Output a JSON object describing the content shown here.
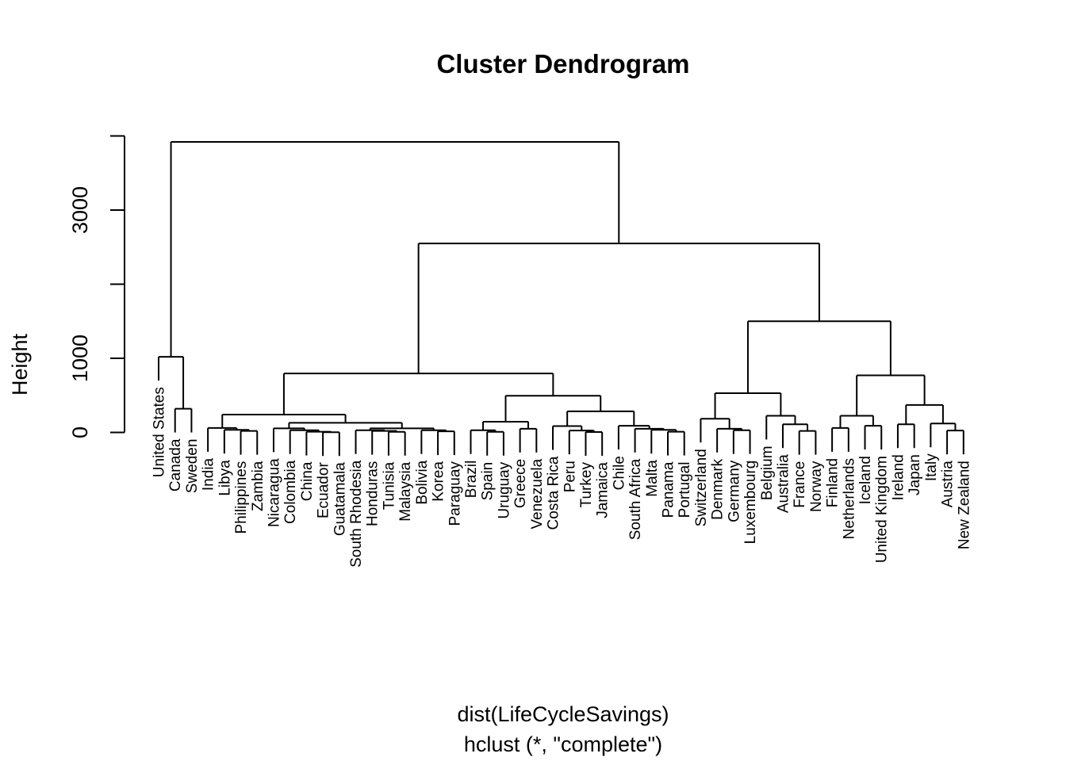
{
  "chart_data": {
    "type": "dendrogram",
    "title": "Cluster Dendrogram",
    "ylabel": "Height",
    "xlabel": "dist(LifeCycleSavings)",
    "sublabel": "hclust (*, \"complete\")",
    "y_ticks": [
      0,
      1000,
      3000
    ],
    "y_tick_marks": [
      0,
      1000,
      2000,
      3000,
      4000
    ],
    "ylim": [
      0,
      4000
    ],
    "leaves": [
      "United States",
      "Canada",
      "Sweden",
      "India",
      "Libya",
      "Philippines",
      "Zambia",
      "Nicaragua",
      "Colombia",
      "China",
      "Ecuador",
      "Guatamala",
      "South Rhodesia",
      "Honduras",
      "Tunisia",
      "Malaysia",
      "Bolivia",
      "Korea",
      "Paraguay",
      "Brazil",
      "Spain",
      "Uruguay",
      "Greece",
      "Venezuela",
      "Costa Rica",
      "Peru",
      "Turkey",
      "Jamaica",
      "Chile",
      "South Africa",
      "Malta",
      "Panama",
      "Portugal",
      "Switzerland",
      "Denmark",
      "Germany",
      "Luxembourg",
      "Belgium",
      "Australia",
      "France",
      "Norway",
      "Finland",
      "Netherlands",
      "Iceland",
      "United Kingdom",
      "Ireland",
      "Japan",
      "Italy",
      "Austria",
      "New Zealand"
    ],
    "merges": [
      {
        "a": [
          "Canada"
        ],
        "b": [
          "Sweden"
        ],
        "height": 320
      },
      {
        "a": [
          "United States"
        ],
        "b": [
          "Canada",
          "Sweden"
        ],
        "height": 1020
      },
      {
        "a": [
          "Philippines"
        ],
        "b": [
          "Zambia"
        ],
        "height": 20
      },
      {
        "a": [
          "Libya"
        ],
        "b": [
          "Philippines",
          "Zambia"
        ],
        "height": 35
      },
      {
        "a": [
          "India"
        ],
        "b": [
          "Libya",
          "Philippines",
          "Zambia"
        ],
        "height": 60
      },
      {
        "a": [
          "Ecuador"
        ],
        "b": [
          "Guatamala"
        ],
        "height": 3
      },
      {
        "a": [
          "China"
        ],
        "b": [
          "Ecuador",
          "Guatamala"
        ],
        "height": 10
      },
      {
        "a": [
          "Colombia"
        ],
        "b": [
          "China",
          "Ecuador",
          "Guatamala"
        ],
        "height": 30
      },
      {
        "a": [
          "Nicaragua"
        ],
        "b": [
          "Colombia",
          "China",
          "Ecuador",
          "Guatamala"
        ],
        "height": 55
      },
      {
        "a": [
          "Tunisia"
        ],
        "b": [
          "Malaysia"
        ],
        "height": 8
      },
      {
        "a": [
          "Honduras"
        ],
        "b": [
          "Tunisia",
          "Malaysia"
        ],
        "height": 20
      },
      {
        "a": [
          "South Rhodesia"
        ],
        "b": [
          "Honduras",
          "Tunisia",
          "Malaysia"
        ],
        "height": 30
      },
      {
        "a": [
          "Korea"
        ],
        "b": [
          "Paraguay"
        ],
        "height": 15
      },
      {
        "a": [
          "Bolivia"
        ],
        "b": [
          "Korea",
          "Paraguay"
        ],
        "height": 30
      },
      {
        "a": [
          "South Rhodesia",
          "Honduras",
          "Tunisia",
          "Malaysia"
        ],
        "b": [
          "Bolivia",
          "Korea",
          "Paraguay"
        ],
        "height": 55
      },
      {
        "a": [
          "Nicaragua",
          "Colombia",
          "China",
          "Ecuador",
          "Guatamala"
        ],
        "b": [
          "South Rhodesia",
          "Honduras",
          "Tunisia",
          "Malaysia",
          "Bolivia",
          "Korea",
          "Paraguay"
        ],
        "height": 130
      },
      {
        "a": [
          "India",
          "Libya",
          "Philippines",
          "Zambia"
        ],
        "b": [
          "Nicaragua",
          "Colombia",
          "China",
          "Ecuador",
          "Guatamala",
          "South Rhodesia",
          "Honduras",
          "Tunisia",
          "Malaysia",
          "Bolivia",
          "Korea",
          "Paraguay"
        ],
        "height": 240
      },
      {
        "a": [
          "Spain"
        ],
        "b": [
          "Uruguay"
        ],
        "height": 8
      },
      {
        "a": [
          "Brazil"
        ],
        "b": [
          "Spain",
          "Uruguay"
        ],
        "height": 30
      },
      {
        "a": [
          "Greece"
        ],
        "b": [
          "Venezuela"
        ],
        "height": 50
      },
      {
        "a": [
          "Brazil",
          "Spain",
          "Uruguay"
        ],
        "b": [
          "Greece",
          "Venezuela"
        ],
        "height": 145
      },
      {
        "a": [
          "Turkey"
        ],
        "b": [
          "Jamaica"
        ],
        "height": 5
      },
      {
        "a": [
          "Peru"
        ],
        "b": [
          "Turkey",
          "Jamaica"
        ],
        "height": 25
      },
      {
        "a": [
          "Costa Rica"
        ],
        "b": [
          "Peru",
          "Turkey",
          "Jamaica"
        ],
        "height": 85
      },
      {
        "a": [
          "Panama"
        ],
        "b": [
          "Portugal"
        ],
        "height": 10
      },
      {
        "a": [
          "Malta"
        ],
        "b": [
          "Panama",
          "Portugal"
        ],
        "height": 35
      },
      {
        "a": [
          "South Africa"
        ],
        "b": [
          "Malta",
          "Panama",
          "Portugal"
        ],
        "height": 50
      },
      {
        "a": [
          "Chile"
        ],
        "b": [
          "South Africa",
          "Malta",
          "Panama",
          "Portugal"
        ],
        "height": 90
      },
      {
        "a": [
          "Costa Rica",
          "Peru",
          "Turkey",
          "Jamaica"
        ],
        "b": [
          "Chile",
          "South Africa",
          "Malta",
          "Panama",
          "Portugal"
        ],
        "height": 285
      },
      {
        "a": [
          "Brazil",
          "Spain",
          "Uruguay",
          "Greece",
          "Venezuela"
        ],
        "b": [
          "Costa Rica",
          "Peru",
          "Turkey",
          "Jamaica",
          "Chile",
          "South Africa",
          "Malta",
          "Panama",
          "Portugal"
        ],
        "height": 495
      },
      {
        "a": [
          "India",
          "Libya",
          "Philippines",
          "Zambia",
          "Nicaragua",
          "Colombia",
          "China",
          "Ecuador",
          "Guatamala",
          "South Rhodesia",
          "Honduras",
          "Tunisia",
          "Malaysia",
          "Bolivia",
          "Korea",
          "Paraguay"
        ],
        "b": [
          "Brazil",
          "Spain",
          "Uruguay",
          "Greece",
          "Venezuela",
          "Costa Rica",
          "Peru",
          "Turkey",
          "Jamaica",
          "Chile",
          "South Africa",
          "Malta",
          "Panama",
          "Portugal"
        ],
        "height": 795
      },
      {
        "a": [
          "Germany"
        ],
        "b": [
          "Luxembourg"
        ],
        "height": 30
      },
      {
        "a": [
          "Denmark"
        ],
        "b": [
          "Germany",
          "Luxembourg"
        ],
        "height": 50
      },
      {
        "a": [
          "Switzerland"
        ],
        "b": [
          "Denmark",
          "Germany",
          "Luxembourg"
        ],
        "height": 185
      },
      {
        "a": [
          "France"
        ],
        "b": [
          "Norway"
        ],
        "height": 20
      },
      {
        "a": [
          "Australia"
        ],
        "b": [
          "France",
          "Norway"
        ],
        "height": 110
      },
      {
        "a": [
          "Belgium"
        ],
        "b": [
          "Australia",
          "France",
          "Norway"
        ],
        "height": 225
      },
      {
        "a": [
          "Switzerland",
          "Denmark",
          "Germany",
          "Luxembourg"
        ],
        "b": [
          "Belgium",
          "Australia",
          "France",
          "Norway"
        ],
        "height": 530
      },
      {
        "a": [
          "Finland"
        ],
        "b": [
          "Netherlands"
        ],
        "height": 60
      },
      {
        "a": [
          "Iceland"
        ],
        "b": [
          "United Kingdom"
        ],
        "height": 90
      },
      {
        "a": [
          "Finland",
          "Netherlands"
        ],
        "b": [
          "Iceland",
          "United Kingdom"
        ],
        "height": 225
      },
      {
        "a": [
          "Ireland"
        ],
        "b": [
          "Japan"
        ],
        "height": 110
      },
      {
        "a": [
          "Austria"
        ],
        "b": [
          "New Zealand"
        ],
        "height": 25
      },
      {
        "a": [
          "Italy"
        ],
        "b": [
          "Austria",
          "New Zealand"
        ],
        "height": 120
      },
      {
        "a": [
          "Ireland",
          "Japan"
        ],
        "b": [
          "Italy",
          "Austria",
          "New Zealand"
        ],
        "height": 370
      },
      {
        "a": [
          "Finland",
          "Netherlands",
          "Iceland",
          "United Kingdom"
        ],
        "b": [
          "Ireland",
          "Japan",
          "Italy",
          "Austria",
          "New Zealand"
        ],
        "height": 770
      },
      {
        "a": [
          "Switzerland",
          "Denmark",
          "Germany",
          "Luxembourg",
          "Belgium",
          "Australia",
          "France",
          "Norway"
        ],
        "b": [
          "Finland",
          "Netherlands",
          "Iceland",
          "United Kingdom",
          "Ireland",
          "Japan",
          "Italy",
          "Austria",
          "New Zealand"
        ],
        "height": 1500
      },
      {
        "a": [
          "India",
          "Libya",
          "Philippines",
          "Zambia",
          "Nicaragua",
          "Colombia",
          "China",
          "Ecuador",
          "Guatamala",
          "South Rhodesia",
          "Honduras",
          "Tunisia",
          "Malaysia",
          "Bolivia",
          "Korea",
          "Paraguay",
          "Brazil",
          "Spain",
          "Uruguay",
          "Greece",
          "Venezuela",
          "Costa Rica",
          "Peru",
          "Turkey",
          "Jamaica",
          "Chile",
          "South Africa",
          "Malta",
          "Panama",
          "Portugal"
        ],
        "b": [
          "Switzerland",
          "Denmark",
          "Germany",
          "Luxembourg",
          "Belgium",
          "Australia",
          "France",
          "Norway",
          "Finland",
          "Netherlands",
          "Iceland",
          "United Kingdom",
          "Ireland",
          "Japan",
          "Italy",
          "Austria",
          "New Zealand"
        ],
        "height": 2550
      },
      {
        "a": [
          "United States",
          "Canada",
          "Sweden"
        ],
        "b": [
          "India",
          "Libya",
          "Philippines",
          "Zambia",
          "Nicaragua",
          "Colombia",
          "China",
          "Ecuador",
          "Guatamala",
          "South Rhodesia",
          "Honduras",
          "Tunisia",
          "Malaysia",
          "Bolivia",
          "Korea",
          "Paraguay",
          "Brazil",
          "Spain",
          "Uruguay",
          "Greece",
          "Venezuela",
          "Costa Rica",
          "Peru",
          "Turkey",
          "Jamaica",
          "Chile",
          "South Africa",
          "Malta",
          "Panama",
          "Portugal",
          "Switzerland",
          "Denmark",
          "Germany",
          "Luxembourg",
          "Belgium",
          "Australia",
          "France",
          "Norway",
          "Finland",
          "Netherlands",
          "Iceland",
          "United Kingdom",
          "Ireland",
          "Japan",
          "Italy",
          "Austria",
          "New Zealand"
        ],
        "height": 3920
      }
    ]
  }
}
